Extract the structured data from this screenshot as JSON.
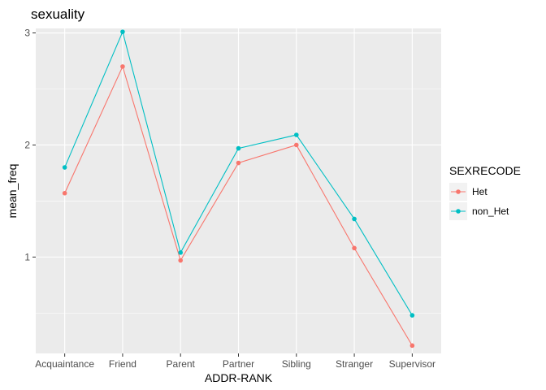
{
  "chart_data": {
    "type": "line",
    "title": "sexuality",
    "xlabel": "ADDR-RANK",
    "ylabel": "mean_freq",
    "categories": [
      "Acquaintance",
      "Friend",
      "Parent",
      "Partner",
      "Sibling",
      "Stranger",
      "Supervisor"
    ],
    "yticks": [
      1,
      2,
      3
    ],
    "ylim": [
      0.14,
      3.04
    ],
    "grid": true,
    "legend": {
      "title": "SEXRECODE",
      "position": "right"
    },
    "series": [
      {
        "name": "Het",
        "color": "#F8766D",
        "values": [
          1.57,
          2.7,
          0.97,
          1.84,
          2.0,
          1.08,
          0.21
        ]
      },
      {
        "name": "non_Het",
        "color": "#00BFC4",
        "values": [
          1.8,
          3.01,
          1.04,
          1.97,
          2.09,
          1.34,
          0.48
        ]
      }
    ],
    "colors": {
      "panel": "#EBEBEB",
      "grid_major": "#FFFFFF",
      "tick_text": "#4D4D4D"
    }
  }
}
